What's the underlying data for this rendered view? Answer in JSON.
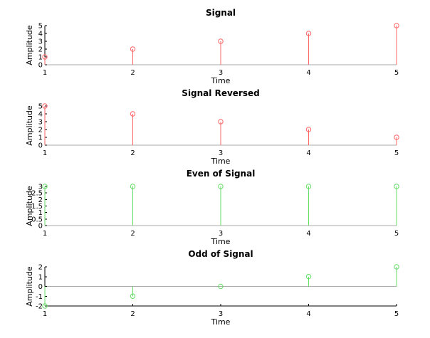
{
  "chart_data": [
    {
      "type": "stem",
      "title": "Signal",
      "xlabel": "Time",
      "ylabel": "Amplitude",
      "color": "#ff6666",
      "x": [
        1,
        2,
        3,
        4,
        5
      ],
      "values": [
        1,
        2,
        3,
        4,
        5
      ],
      "xlim": [
        1,
        5
      ],
      "ylim": [
        0,
        5
      ],
      "xticks": [
        "1",
        "2",
        "3",
        "4",
        "5"
      ],
      "yticks": [
        "0",
        "1",
        "2",
        "3",
        "4",
        "5"
      ],
      "grid": false
    },
    {
      "type": "stem",
      "title": "Signal Reversed",
      "xlabel": "Time",
      "ylabel": "Amplitude",
      "color": "#ff6666",
      "x": [
        1,
        2,
        3,
        4,
        5
      ],
      "values": [
        5,
        4,
        3,
        2,
        1
      ],
      "xlim": [
        1,
        5
      ],
      "ylim": [
        0,
        5
      ],
      "xticks": [
        "1",
        "2",
        "3",
        "4",
        "5"
      ],
      "yticks": [
        "0",
        "1",
        "2",
        "3",
        "4",
        "5"
      ],
      "grid": false
    },
    {
      "type": "stem",
      "title": "Even of Signal",
      "xlabel": "Time",
      "ylabel": "Amplitude",
      "color": "#66dd66",
      "x": [
        1,
        2,
        3,
        4,
        5
      ],
      "values": [
        3,
        3,
        3,
        3,
        3
      ],
      "xlim": [
        1,
        5
      ],
      "ylim": [
        0,
        3
      ],
      "xticks": [
        "1",
        "2",
        "3",
        "4",
        "5"
      ],
      "yticks": [
        "0",
        "0.5",
        "1",
        "1.5",
        "2",
        "2.5",
        "3"
      ],
      "grid": false
    },
    {
      "type": "stem",
      "title": "Odd of Signal",
      "xlabel": "Time",
      "ylabel": "Amplitude",
      "color": "#66dd66",
      "x": [
        1,
        2,
        3,
        4,
        5
      ],
      "values": [
        -2,
        -1,
        0,
        1,
        2
      ],
      "xlim": [
        1,
        5
      ],
      "ylim": [
        -2,
        2
      ],
      "xticks": [
        "1",
        "2",
        "3",
        "4",
        "5"
      ],
      "yticks": [
        "-2",
        "-1",
        "0",
        "1",
        "2"
      ],
      "grid": false
    }
  ]
}
